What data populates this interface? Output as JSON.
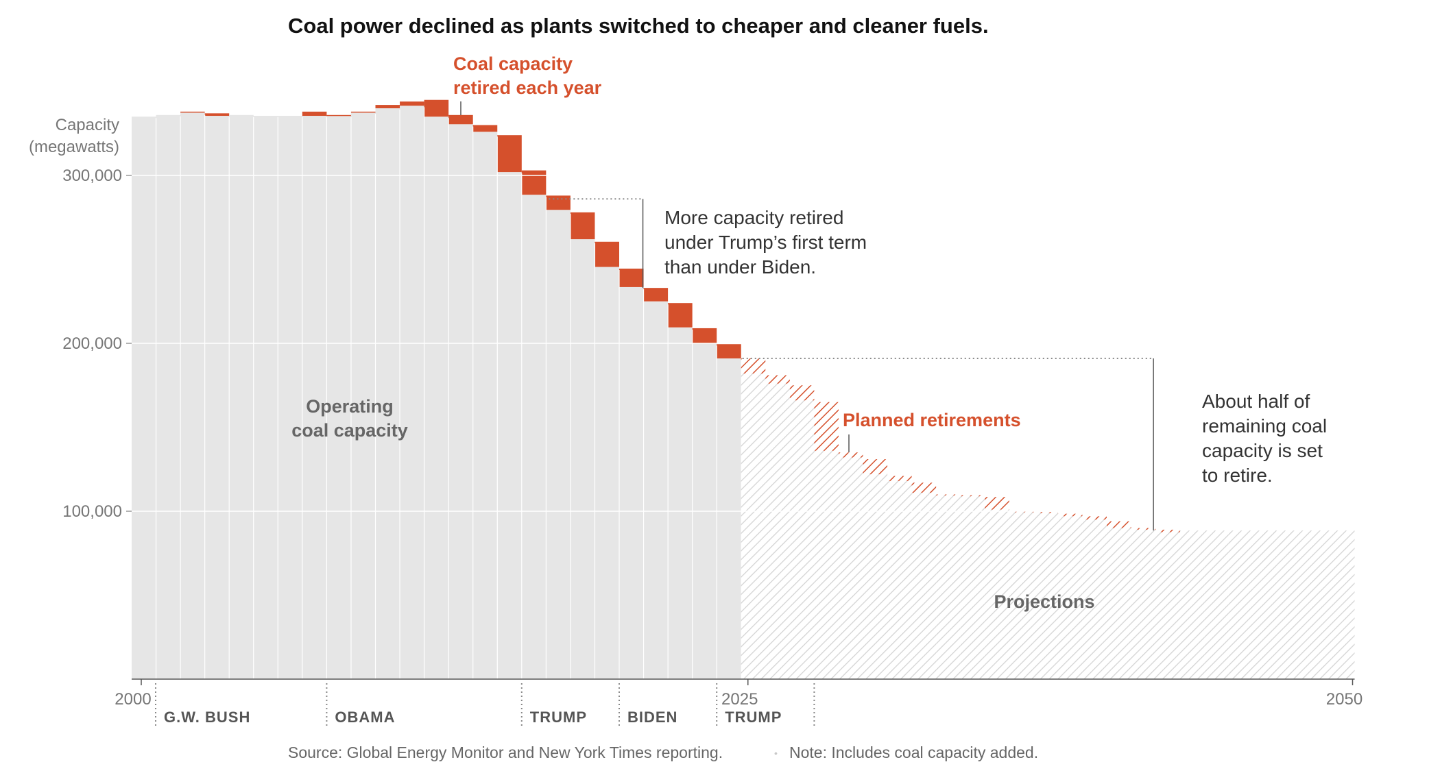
{
  "chart_data": {
    "type": "bar",
    "title": "Coal power declined as plants switched to cheaper and cleaner fuels.",
    "ylabel": [
      "Capacity",
      "(megawatts)"
    ],
    "ylim": [
      0,
      350000
    ],
    "xlim": [
      2000,
      2050
    ],
    "y_ticks": [
      {
        "value": 100000,
        "label": "100,000"
      },
      {
        "value": 200000,
        "label": "200,000"
      },
      {
        "value": 300000,
        "label": "300,000"
      }
    ],
    "x_ticks": [
      {
        "value": 2000,
        "label": "2000"
      },
      {
        "value": 2025,
        "label": "2025"
      },
      {
        "value": 2050,
        "label": "2050"
      }
    ],
    "grid": true,
    "colors": {
      "operating": "#e6e6e6",
      "retired": "#d5502c",
      "planned": "#d5502c",
      "projection_hatch": "#d2d2d2",
      "gridline": "#ffffff",
      "axis": "#555555"
    },
    "historical": [
      {
        "year": 2000,
        "start": 335000,
        "end": 335000
      },
      {
        "year": 2001,
        "start": 336000,
        "end": 336000
      },
      {
        "year": 2002,
        "start": 338000,
        "end": 337500
      },
      {
        "year": 2003,
        "start": 337000,
        "end": 335500
      },
      {
        "year": 2004,
        "start": 336000,
        "end": 336000
      },
      {
        "year": 2005,
        "start": 335500,
        "end": 335500
      },
      {
        "year": 2006,
        "start": 335500,
        "end": 335500
      },
      {
        "year": 2007,
        "start": 338000,
        "end": 335500
      },
      {
        "year": 2008,
        "start": 336000,
        "end": 335500
      },
      {
        "year": 2009,
        "start": 338000,
        "end": 337500
      },
      {
        "year": 2010,
        "start": 342000,
        "end": 340000
      },
      {
        "year": 2011,
        "start": 344000,
        "end": 341500
      },
      {
        "year": 2012,
        "start": 345000,
        "end": 335000
      },
      {
        "year": 2013,
        "start": 336000,
        "end": 330500
      },
      {
        "year": 2014,
        "start": 330000,
        "end": 326000
      },
      {
        "year": 2015,
        "start": 324000,
        "end": 302000
      },
      {
        "year": 2016,
        "start": 303000,
        "end": 288500
      },
      {
        "year": 2017,
        "start": 288000,
        "end": 279500
      },
      {
        "year": 2018,
        "start": 278000,
        "end": 262000
      },
      {
        "year": 2019,
        "start": 260500,
        "end": 245500
      },
      {
        "year": 2020,
        "start": 244500,
        "end": 233500
      },
      {
        "year": 2021,
        "start": 233000,
        "end": 225000
      },
      {
        "year": 2022,
        "start": 224000,
        "end": 209500
      },
      {
        "year": 2023,
        "start": 209000,
        "end": 200000
      },
      {
        "year": 2024,
        "start": 199500,
        "end": 191000
      }
    ],
    "planned": [
      {
        "year": 2025,
        "start": 191000,
        "end": 182000
      },
      {
        "year": 2026,
        "start": 181000,
        "end": 176000
      },
      {
        "year": 2027,
        "start": 175000,
        "end": 166000
      },
      {
        "year": 2028,
        "start": 165000,
        "end": 136000
      },
      {
        "year": 2029,
        "start": 135000,
        "end": 132000
      },
      {
        "year": 2030,
        "start": 131000,
        "end": 122000
      },
      {
        "year": 2031,
        "start": 121000,
        "end": 118000
      },
      {
        "year": 2032,
        "start": 117000,
        "end": 111000
      },
      {
        "year": 2033,
        "start": 110000,
        "end": 109500
      },
      {
        "year": 2034,
        "start": 109500,
        "end": 109000
      },
      {
        "year": 2035,
        "start": 108500,
        "end": 101000
      },
      {
        "year": 2036,
        "start": 100000,
        "end": 99500
      },
      {
        "year": 2037,
        "start": 99500,
        "end": 99000
      },
      {
        "year": 2038,
        "start": 98500,
        "end": 97000
      },
      {
        "year": 2039,
        "start": 97000,
        "end": 95000
      },
      {
        "year": 2040,
        "start": 94000,
        "end": 90000
      },
      {
        "year": 2041,
        "start": 90000,
        "end": 89000
      },
      {
        "year": 2042,
        "start": 89000,
        "end": 87500
      },
      {
        "year": 2043,
        "start": 88500,
        "end": 88500
      },
      {
        "year": 2044,
        "start": 88500,
        "end": 88500
      },
      {
        "year": 2045,
        "start": 88500,
        "end": 88500
      },
      {
        "year": 2046,
        "start": 88500,
        "end": 88500
      },
      {
        "year": 2047,
        "start": 88500,
        "end": 88500
      },
      {
        "year": 2048,
        "start": 88500,
        "end": 88500
      },
      {
        "year": 2049,
        "start": 88500,
        "end": 88500
      }
    ],
    "eras": [
      {
        "label": "G.W. BUSH",
        "start": 2000
      },
      {
        "label": "OBAMA",
        "start": 2008
      },
      {
        "label": "TRUMP",
        "start": 2016
      },
      {
        "label": "BIDEN",
        "start": 2020
      },
      {
        "label": "TRUMP",
        "start": 2024
      },
      {
        "label": "",
        "start": 2028
      }
    ],
    "annotations": {
      "retired_label": [
        "Coal capacity",
        "retired each year"
      ],
      "trump_vs_biden": [
        "More capacity retired",
        "under Trump’s first term",
        "than under Biden."
      ],
      "planned_label": "Planned retirements",
      "operating_label": [
        "Operating",
        "coal capacity"
      ],
      "projections_label": "Projections",
      "half_retire": [
        "About half of",
        "remaining coal",
        "capacity is set",
        "to retire."
      ]
    },
    "reference_levels": {
      "trump_bracket": {
        "top": 286000,
        "bottom": 233000,
        "from_year": 2017,
        "to_year": 2021
      },
      "half_bracket": {
        "top": 191000,
        "bottom": 88500,
        "from_year": 2025,
        "to_year": 2042
      }
    }
  },
  "footer": {
    "source": "Source: Global Energy Monitor and New York Times reporting.",
    "separator": "•",
    "note": "Note: Includes coal capacity added."
  }
}
